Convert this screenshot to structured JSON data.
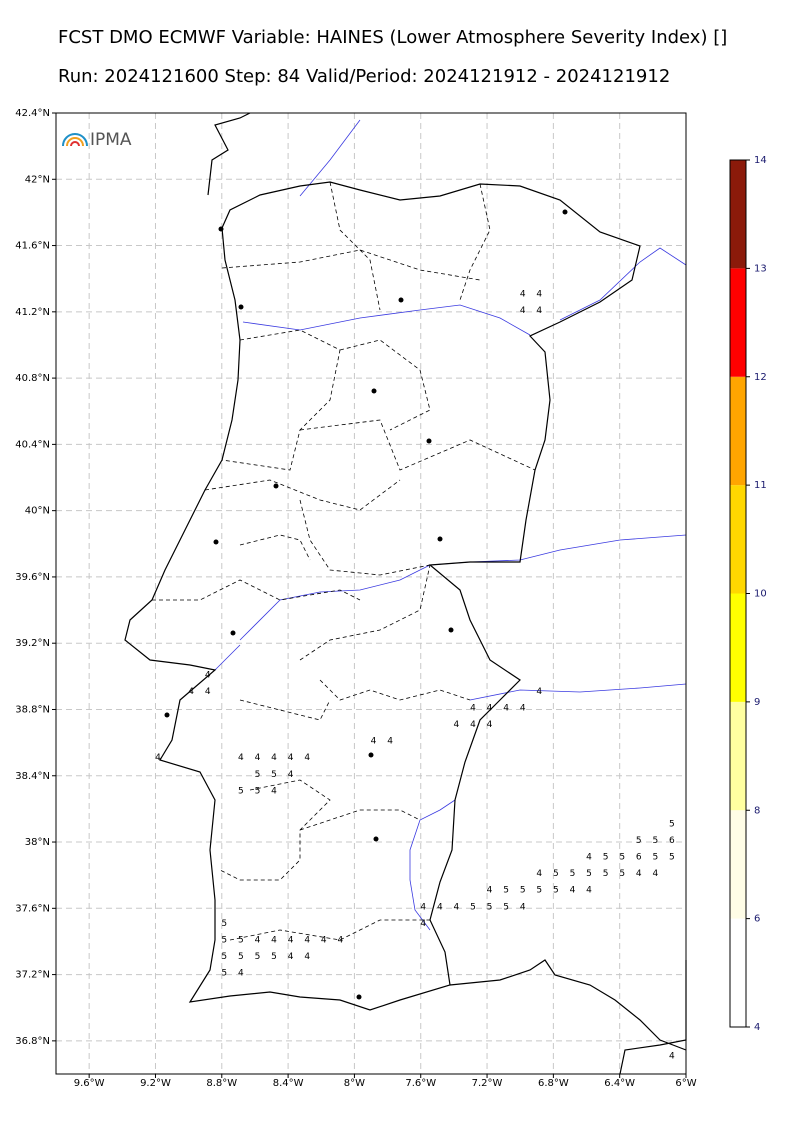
{
  "chart_data": {
    "type": "map",
    "title": "FCST DMO ECMWF Variable: HAINES (Lower Atmosphere Severity Index) []",
    "subtitle": "Run: 2024121600 Step: 84 Valid/Period: 2024121912 - 2024121912",
    "logo": "IPMA",
    "xlim": [
      -9.8,
      -6
    ],
    "ylim": [
      36.6,
      42.4
    ],
    "grid": true,
    "xticks": [
      {
        "value": -9.6,
        "label": "9.6°W"
      },
      {
        "value": -9.2,
        "label": "9.2°W"
      },
      {
        "value": -8.8,
        "label": "8.8°W"
      },
      {
        "value": -8.4,
        "label": "8.4°W"
      },
      {
        "value": -8,
        "label": "8°W"
      },
      {
        "value": -7.6,
        "label": "7.6°W"
      },
      {
        "value": -7.2,
        "label": "7.2°W"
      },
      {
        "value": -6.8,
        "label": "6.8°W"
      },
      {
        "value": -6.4,
        "label": "6.4°W"
      },
      {
        "value": -6,
        "label": "6°W"
      }
    ],
    "yticks": [
      {
        "value": 42.4,
        "label": "42.4°N"
      },
      {
        "value": 42,
        "label": "42°N"
      },
      {
        "value": 41.6,
        "label": "41.6°N"
      },
      {
        "value": 41.2,
        "label": "41.2°N"
      },
      {
        "value": 40.8,
        "label": "40.8°N"
      },
      {
        "value": 40.4,
        "label": "40.4°N"
      },
      {
        "value": 40,
        "label": "40°N"
      },
      {
        "value": 39.6,
        "label": "39.6°N"
      },
      {
        "value": 39.2,
        "label": "39.2°N"
      },
      {
        "value": 38.8,
        "label": "38.8°N"
      },
      {
        "value": 38.4,
        "label": "38.4°N"
      },
      {
        "value": 38,
        "label": "38°N"
      },
      {
        "value": 37.6,
        "label": "37.6°N"
      },
      {
        "value": 37.2,
        "label": "37.2°N"
      },
      {
        "value": 36.8,
        "label": "36.8°N"
      }
    ],
    "x": [
      -7.0,
      -6.9,
      -7.0,
      -6.9,
      -8.9,
      -9.0,
      -8.9,
      -6.9,
      -7.3,
      -7.2,
      -7.1,
      -7.0,
      -7.4,
      -7.3,
      -7.2,
      -7.9,
      -7.8,
      -9.2,
      -8.7,
      -8.6,
      -8.5,
      -8.4,
      -8.3,
      -8.6,
      -8.5,
      -8.4,
      -8.7,
      -8.6,
      -8.5,
      -6.1,
      -6.3,
      -6.2,
      -6.1,
      -6.6,
      -6.5,
      -6.4,
      -6.3,
      -6.2,
      -6.1,
      -6.9,
      -6.8,
      -6.7,
      -6.6,
      -6.5,
      -6.4,
      -6.3,
      -6.2,
      -7.2,
      -7.1,
      -7.0,
      -6.9,
      -6.8,
      -6.7,
      -6.6,
      -7.6,
      -7.5,
      -7.4,
      -7.3,
      -7.2,
      -7.1,
      -7.0,
      -8.8,
      -7.6,
      -8.8,
      -8.7,
      -8.6,
      -8.5,
      -8.4,
      -8.3,
      -8.2,
      -8.1,
      -8.8,
      -8.7,
      -8.6,
      -8.5,
      -8.4,
      -8.3,
      -8.8,
      -8.7,
      -6.1
    ],
    "y": [
      41.3,
      41.3,
      41.2,
      41.2,
      39.0,
      38.9,
      38.9,
      38.9,
      38.8,
      38.8,
      38.8,
      38.8,
      38.7,
      38.7,
      38.7,
      38.6,
      38.6,
      38.5,
      38.5,
      38.5,
      38.5,
      38.5,
      38.5,
      38.4,
      38.4,
      38.4,
      38.3,
      38.3,
      38.3,
      38.1,
      38.0,
      38.0,
      38.0,
      37.9,
      37.9,
      37.9,
      37.9,
      37.9,
      37.9,
      37.8,
      37.8,
      37.8,
      37.8,
      37.8,
      37.8,
      37.8,
      37.8,
      37.7,
      37.7,
      37.7,
      37.7,
      37.7,
      37.7,
      37.7,
      37.6,
      37.6,
      37.6,
      37.6,
      37.6,
      37.6,
      37.6,
      37.5,
      37.5,
      37.4,
      37.4,
      37.4,
      37.4,
      37.4,
      37.4,
      37.4,
      37.4,
      37.3,
      37.3,
      37.3,
      37.3,
      37.3,
      37.3,
      37.2,
      37.2,
      36.7
    ],
    "values": [
      4,
      4,
      4,
      4,
      4,
      4,
      4,
      4,
      4,
      4,
      4,
      4,
      4,
      4,
      4,
      4,
      4,
      4,
      4,
      4,
      4,
      4,
      4,
      5,
      5,
      4,
      5,
      5,
      4,
      5,
      5,
      5,
      6,
      4,
      5,
      5,
      6,
      5,
      5,
      4,
      5,
      5,
      5,
      5,
      5,
      4,
      4,
      4,
      5,
      5,
      5,
      5,
      4,
      4,
      4,
      4,
      4,
      5,
      5,
      5,
      4,
      5,
      4,
      5,
      5,
      4,
      4,
      4,
      4,
      4,
      4,
      5,
      5,
      5,
      5,
      4,
      4,
      5,
      4,
      4
    ],
    "colorbar": {
      "ticks": [
        4,
        6,
        8,
        9,
        10,
        11,
        12,
        13,
        14
      ],
      "colors": [
        "#ffffff",
        "#fffde6",
        "#ffffa0",
        "#ffff00",
        "#ffd700",
        "#ffa500",
        "#ff0000",
        "#8b1a0a"
      ]
    }
  }
}
